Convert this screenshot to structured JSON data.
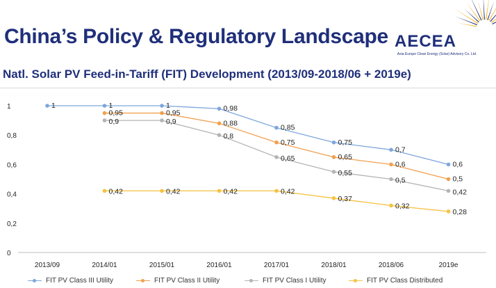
{
  "header": {
    "title": "China’s Policy & Regulatory Landscape",
    "subtitle": "Natl. Solar PV Feed-in-Tariff (FIT) Development (2013/09-2018/06 + 2019e)"
  },
  "logo": {
    "name": "AECEA",
    "tagline": "Asia Europe Clean Energy (Solar) Advisory Co. Ltd.",
    "colors": [
      "#f2b21b",
      "#1f2f7a"
    ]
  },
  "chart_data": {
    "type": "line",
    "x": [
      "2013/09",
      "2014/01",
      "2015/01",
      "2016/01",
      "2017/01",
      "2018/01",
      "2018/06",
      "2019e"
    ],
    "y_ticks": [
      "0",
      "0,2",
      "0,4",
      "0,6",
      "0,8",
      "1"
    ],
    "ylim": [
      0,
      1
    ],
    "grid": false,
    "legend_position": "bottom",
    "series": [
      {
        "name": "FIT PV Class III Utility",
        "color": "#7ea6dc",
        "values": [
          1,
          1,
          1,
          0.98,
          0.85,
          0.75,
          0.7,
          0.6
        ],
        "labels": [
          "1",
          "1",
          "1",
          "0,98",
          "0,85",
          "0,75",
          "0,7",
          "0,6"
        ]
      },
      {
        "name": "FIT PV Class II Utility",
        "color": "#f0a050",
        "values": [
          null,
          0.95,
          0.95,
          0.88,
          0.75,
          0.65,
          0.6,
          0.5
        ],
        "labels": [
          "",
          "0,95",
          "0,95",
          "0,88",
          "0,75",
          "0,65",
          "0,6",
          "0,5"
        ]
      },
      {
        "name": "FIT PV Class I Utility",
        "color": "#b4b4b4",
        "values": [
          null,
          0.9,
          0.9,
          0.8,
          0.65,
          0.55,
          0.5,
          0.42
        ],
        "labels": [
          "",
          "0,9",
          "0,9",
          "0,8",
          "0,65",
          "0,55",
          "0,5",
          "0,42"
        ]
      },
      {
        "name": "FIT PV Class Distributed",
        "color": "#f5c242",
        "values": [
          null,
          0.42,
          0.42,
          0.42,
          0.42,
          0.37,
          0.32,
          0.28
        ],
        "labels": [
          "",
          "0,42",
          "0,42",
          "0,42",
          "0,42",
          "0,37",
          "0,32",
          "0,28"
        ]
      }
    ]
  }
}
